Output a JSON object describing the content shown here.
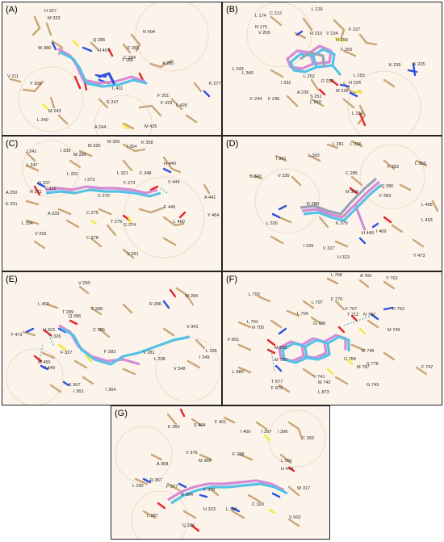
{
  "colors": {
    "background_tint": "#fcf4ea",
    "residue_stick": "#c9a57a",
    "oxygen": "#e8232a",
    "nitrogen": "#2d52e0",
    "sulfur": "#f2e93a",
    "ligand_cyan": "#56c1e6",
    "ligand_pink": "#d58ad6",
    "ligand_gray": "#9aa2b8",
    "hbond": "#2aa6c9"
  },
  "panels": [
    {
      "label": "(A)",
      "residues": [
        "H 327",
        "M 323",
        "W 380",
        "Q 285",
        "N 404",
        "H 407",
        "C 284",
        "F 281",
        "T 280",
        "A 280",
        "V 211",
        "Y 306",
        "L 411",
        "K 277",
        "S 247",
        "F 251",
        "F 429",
        "L 428",
        "M 243",
        "L 240",
        "A 244",
        "M 425"
      ]
    },
    {
      "label": "(B)",
      "residues": [
        "L 174",
        "C 212",
        "L 216",
        "N 175",
        "V 209",
        "H 213",
        "V 234",
        "F 227",
        "H 256",
        "F 255",
        "L 343",
        "L 340",
        "L 252",
        "K 235",
        "K 225",
        "I 332",
        "D 233",
        "H 224",
        "L 253",
        "M 226",
        "A 239",
        "F 244",
        "F 245",
        "S 251",
        "L 249",
        "L 250"
      ]
    },
    {
      "label": "(C)",
      "residues": [
        "I 241",
        "I 339",
        "M 330",
        "M 325",
        "M 355",
        "I 354",
        "K 358",
        "L 247",
        "L 331",
        "L 321",
        "H 440",
        "F 348",
        "G 337",
        "V 332",
        "I 272",
        "F 273",
        "V 444",
        "A 441",
        "R 271",
        "A 250",
        "C 276",
        "E 251",
        "A 333",
        "C 275",
        "T 279",
        "F 445",
        "L 254",
        "G 274",
        "V 256",
        "C 278",
        "L 460",
        "Y 464",
        "V 281"
      ]
    },
    {
      "label": "(D)",
      "residues": [
        "L 281",
        "L 356",
        "L 363",
        "I 341",
        "F 282",
        "L 360",
        "C 285",
        "L 340",
        "V 339",
        "M 364",
        "Q 286",
        "F 283",
        "R 288",
        "L 465",
        "L 453",
        "L 330",
        "K 379",
        "H 449",
        "I 469",
        "I 326",
        "V 327",
        "H 323",
        "Y 473"
      ]
    },
    {
      "label": "(E)",
      "residues": [
        "V 290",
        "R 286",
        "W 284",
        "L 469",
        "T 289",
        "T 288",
        "Q 286",
        "Y 473",
        "H 323",
        "I 326",
        "C 285",
        "V 341",
        "F 283",
        "V 281",
        "L 338",
        "L 255",
        "I 249",
        "F 327",
        "M 450",
        "H 449",
        "V 348",
        "K 367",
        "I 363",
        "I 364"
      ]
    },
    {
      "label": "(F)",
      "residues": [
        "L 768",
        "A 765",
        "Y 763",
        "L 700",
        "L 707",
        "F 770",
        "F 767",
        "L 704",
        "T 712",
        "N 762",
        "R 752",
        "L 701",
        "N 705",
        "G 708",
        "M 749",
        "F 891",
        "M 895",
        "M 745",
        "M 780",
        "C 784",
        "L 880",
        "S 778",
        "M 787",
        "V 741",
        "M 742",
        "T 877",
        "F 876",
        "L 873",
        "G 743",
        "F 747"
      ]
    },
    {
      "label": "(G)",
      "residues": [
        "K 369",
        "S 404",
        "F 401",
        "I 400",
        "I 397",
        "I 396",
        "C 393",
        "V 376",
        "M 365",
        "F 388",
        "L 391",
        "A 368",
        "H 479",
        "L 292",
        "R 367",
        "F 377",
        "F 378",
        "W 317",
        "R 364",
        "H 323",
        "L 324",
        "C 320",
        "V 502",
        "L 287",
        "Q 286"
      ]
    }
  ]
}
